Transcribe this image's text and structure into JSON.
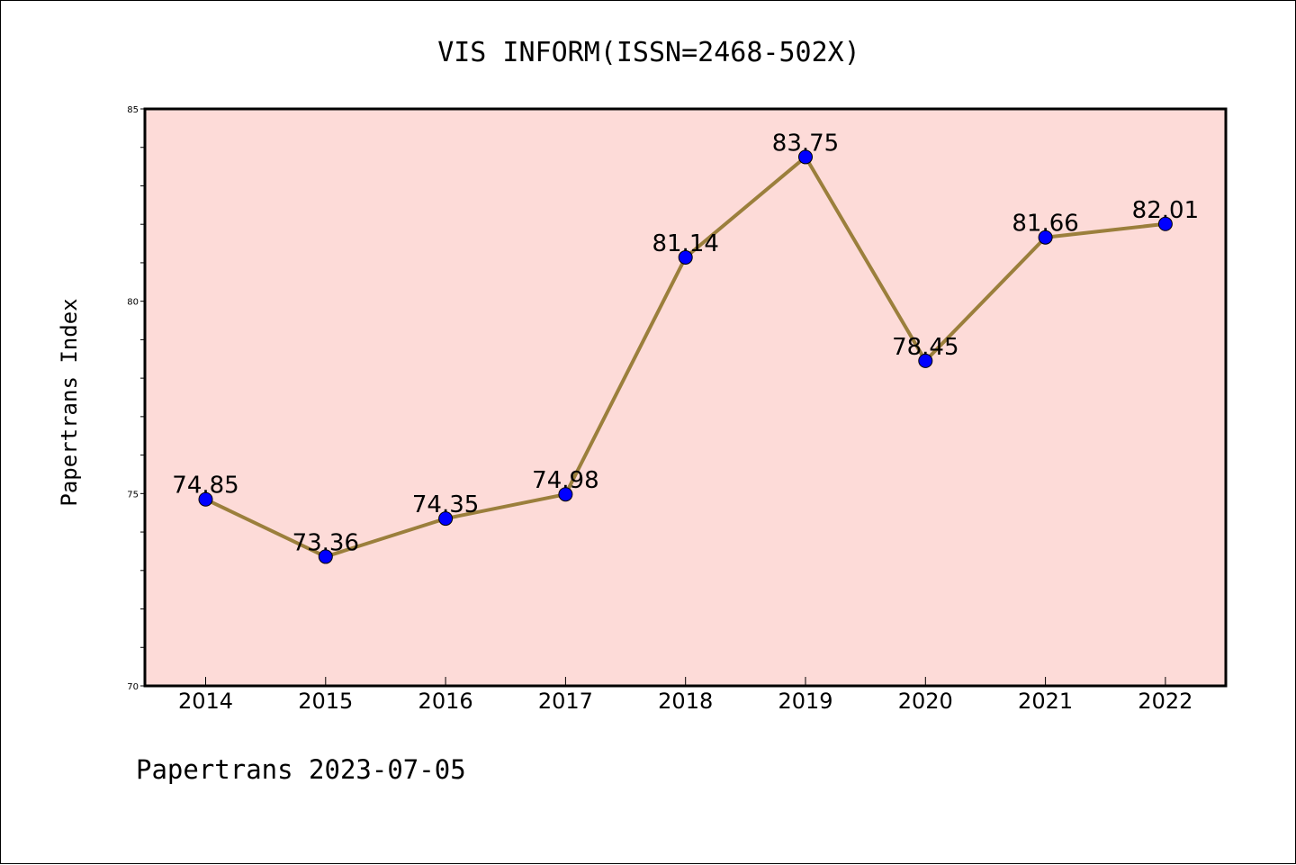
{
  "chart_data": {
    "type": "line",
    "title": "VIS INFORM(ISSN=2468-502X)",
    "ylabel": "Papertrans Index",
    "xlabel": "",
    "footer": "Papertrans 2023-07-05",
    "categories": [
      "2014",
      "2015",
      "2016",
      "2017",
      "2018",
      "2019",
      "2020",
      "2021",
      "2022"
    ],
    "values": [
      74.85,
      73.36,
      74.35,
      74.98,
      81.14,
      83.75,
      78.45,
      81.66,
      82.01
    ],
    "data_labels": [
      "74.85",
      "73.36",
      "74.35",
      "74.98",
      "81.14",
      "83.75",
      "78.45",
      "81.66",
      "82.01"
    ],
    "ylim": [
      70,
      85
    ],
    "yticks": [
      "70",
      "75",
      "80",
      "85"
    ],
    "colors": {
      "plot_background": "#fddbd8",
      "line": "#9b7f3c",
      "marker": "#0000ff"
    },
    "grid": false,
    "legend": "none"
  }
}
